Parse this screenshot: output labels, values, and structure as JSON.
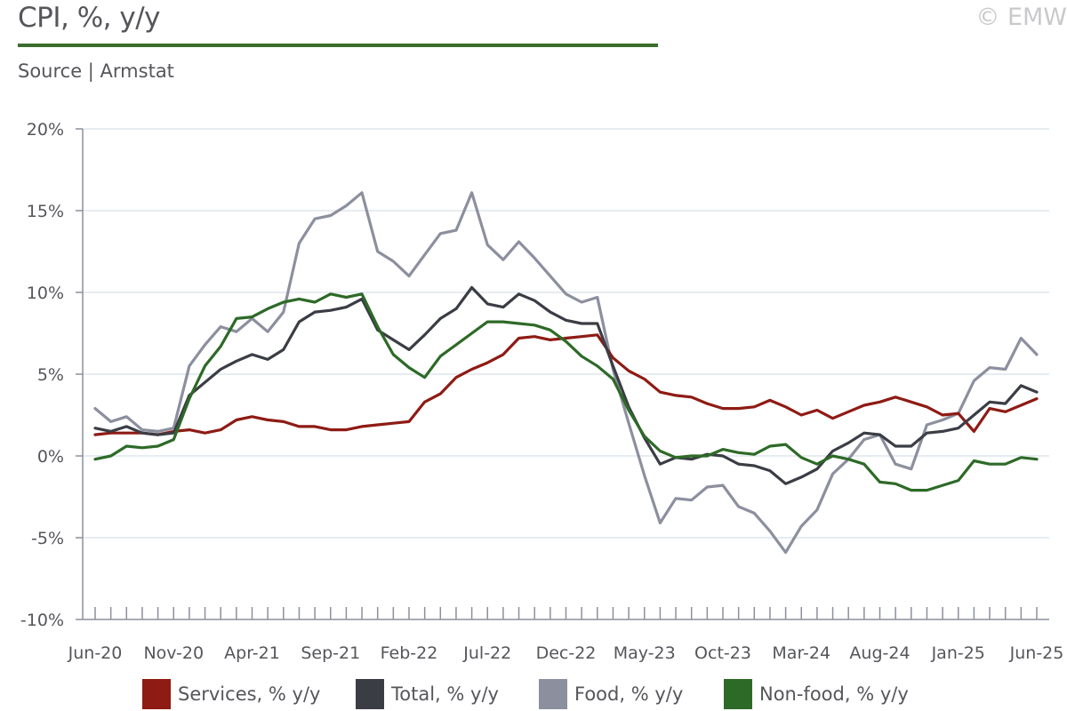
{
  "header": {
    "title": "CPI, %, y/y",
    "source": "Source | Armstat",
    "copyright": "© EMW"
  },
  "colors": {
    "services": "#8e1b14",
    "total": "#3b3d45",
    "food": "#8c8f9e",
    "nonfood": "#2d6a27",
    "accent": "#3a6e2c"
  },
  "chart_data": {
    "type": "line",
    "ylim": [
      -10,
      20
    ],
    "yticks": [
      -10,
      -5,
      0,
      5,
      10,
      15,
      20
    ],
    "ytick_labels": [
      "-10%",
      "-5%",
      "0%",
      "5%",
      "10%",
      "15%",
      "20%"
    ],
    "x_start": "Jun-20",
    "x_labels": [
      "Jun-20",
      "Nov-20",
      "Apr-21",
      "Sep-21",
      "Feb-22",
      "Jul-22",
      "Dec-22",
      "May-23",
      "Oct-23",
      "Mar-24",
      "Aug-24",
      "Jan-25",
      "Jun-25"
    ],
    "legend_position": "bottom",
    "grid": "horizontal",
    "series": [
      {
        "name": "Services, % y/y",
        "key": "services",
        "values": [
          1.3,
          1.4,
          1.4,
          1.4,
          1.3,
          1.5,
          1.6,
          1.4,
          1.6,
          2.2,
          2.4,
          2.2,
          2.1,
          1.8,
          1.8,
          1.6,
          1.6,
          1.8,
          1.9,
          2.0,
          2.1,
          3.3,
          3.8,
          4.8,
          5.3,
          5.7,
          6.2,
          7.2,
          7.3,
          7.1,
          7.2,
          7.3,
          7.4,
          6.0,
          5.2,
          4.7,
          3.9,
          3.7,
          3.6,
          3.2,
          2.9,
          2.9,
          3.0,
          3.4,
          3.0,
          2.5,
          2.8,
          2.3,
          2.7,
          3.1,
          3.3,
          3.6,
          3.3,
          3.0,
          2.5,
          2.6,
          1.5,
          2.9,
          2.7,
          3.1,
          3.5
        ]
      },
      {
        "name": "Total, % y/y",
        "key": "total",
        "values": [
          1.7,
          1.5,
          1.8,
          1.4,
          1.3,
          1.4,
          3.7,
          4.5,
          5.3,
          5.8,
          6.2,
          5.9,
          6.5,
          8.2,
          8.8,
          8.9,
          9.1,
          9.6,
          7.7,
          7.1,
          6.5,
          7.4,
          8.4,
          9.0,
          10.3,
          9.3,
          9.1,
          9.9,
          9.5,
          8.8,
          8.3,
          8.1,
          8.1,
          5.5,
          3.0,
          1.1,
          -0.5,
          -0.1,
          -0.2,
          0.1,
          0.0,
          -0.5,
          -0.6,
          -0.9,
          -1.7,
          -1.3,
          -0.8,
          0.3,
          0.8,
          1.4,
          1.3,
          0.6,
          0.6,
          1.4,
          1.5,
          1.7,
          2.5,
          3.3,
          3.2,
          4.3,
          3.9
        ]
      },
      {
        "name": "Food, % y/y",
        "key": "food",
        "values": [
          2.9,
          2.1,
          2.4,
          1.6,
          1.5,
          1.7,
          5.5,
          6.8,
          7.9,
          7.6,
          8.4,
          7.6,
          8.8,
          13.0,
          14.5,
          14.7,
          15.3,
          16.1,
          12.5,
          11.9,
          11.0,
          12.3,
          13.6,
          13.8,
          16.1,
          12.9,
          12.0,
          13.1,
          12.1,
          11.0,
          9.9,
          9.4,
          9.7,
          5.3,
          2.0,
          -1.2,
          -4.1,
          -2.6,
          -2.7,
          -1.9,
          -1.8,
          -3.1,
          -3.5,
          -4.6,
          -5.9,
          -4.3,
          -3.3,
          -1.1,
          -0.2,
          1.0,
          1.3,
          -0.5,
          -0.8,
          1.9,
          2.2,
          2.6,
          4.6,
          5.4,
          5.3,
          7.2,
          6.2
        ]
      },
      {
        "name": "Non-food, % y/y",
        "key": "nonfood",
        "values": [
          -0.2,
          0.0,
          0.6,
          0.5,
          0.6,
          1.0,
          3.5,
          5.5,
          6.7,
          8.4,
          8.5,
          9.0,
          9.4,
          9.6,
          9.4,
          9.9,
          9.7,
          9.9,
          7.9,
          6.2,
          5.4,
          4.8,
          6.1,
          6.8,
          7.5,
          8.2,
          8.2,
          8.1,
          8.0,
          7.7,
          7.0,
          6.1,
          5.5,
          4.7,
          2.8,
          1.2,
          0.3,
          -0.1,
          0.0,
          0.0,
          0.4,
          0.2,
          0.1,
          0.6,
          0.7,
          -0.1,
          -0.5,
          0.0,
          -0.2,
          -0.5,
          -1.6,
          -1.7,
          -2.1,
          -2.1,
          -1.8,
          -1.5,
          -0.3,
          -0.5,
          -0.5,
          -0.1,
          -0.2
        ]
      }
    ]
  }
}
